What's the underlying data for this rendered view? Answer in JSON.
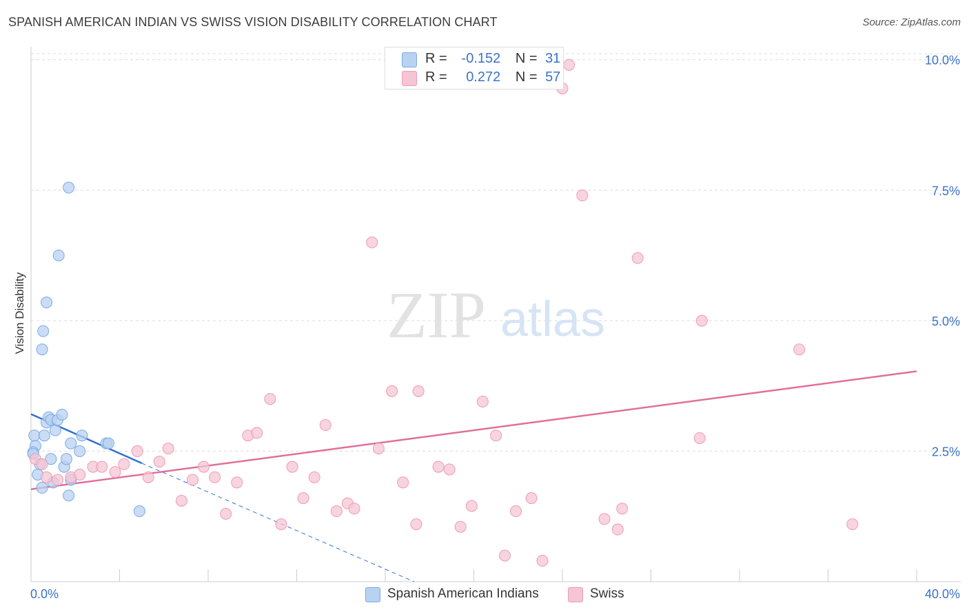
{
  "title": "SPANISH AMERICAN INDIAN VS SWISS VISION DISABILITY CORRELATION CHART",
  "source": "Source: ZipAtlas.com",
  "watermark": {
    "zip": "ZIP",
    "atlas": "atlas"
  },
  "legend": {
    "series1": {
      "r_label": "R =",
      "r_value": "-0.152",
      "n_label": "N =",
      "n_value": "31"
    },
    "series2": {
      "r_label": "R =",
      "r_value": "0.272",
      "n_label": "N =",
      "n_value": "57"
    }
  },
  "chart_data": {
    "type": "scatter",
    "title": "SPANISH AMERICAN INDIAN VS SWISS VISION DISABILITY CORRELATION CHART",
    "xlabel": "",
    "ylabel": "Vision Disability",
    "xlim": [
      0,
      40
    ],
    "ylim": [
      0,
      10.3
    ],
    "x_tick_labels": [
      "0.0%",
      "40.0%"
    ],
    "y_ticks": [
      2.5,
      5.0,
      7.5,
      10.0
    ],
    "y_tick_labels": [
      "2.5%",
      "5.0%",
      "7.5%",
      "10.0%"
    ],
    "series": [
      {
        "name": "Spanish American Indians",
        "color": "#7aa9e6",
        "fill": "#b8d2f2",
        "line_color": "#2e6fd6",
        "trend": {
          "x": [
            0.0,
            5.0
          ],
          "y": [
            3.21,
            2.27
          ],
          "dashed_extension": {
            "x": [
              5.0,
              17.3
            ],
            "y": [
              2.27,
              0.0
            ]
          }
        },
        "points": [
          [
            0.15,
            2.8
          ],
          [
            0.2,
            2.6
          ],
          [
            0.1,
            2.48
          ],
          [
            0.1,
            2.45
          ],
          [
            0.3,
            2.05
          ],
          [
            0.4,
            2.25
          ],
          [
            0.5,
            1.8
          ],
          [
            0.6,
            2.8
          ],
          [
            0.7,
            3.05
          ],
          [
            0.8,
            3.15
          ],
          [
            0.9,
            3.1
          ],
          [
            0.9,
            2.35
          ],
          [
            1.0,
            1.9
          ],
          [
            1.1,
            2.9
          ],
          [
            1.2,
            3.1
          ],
          [
            1.4,
            3.2
          ],
          [
            1.5,
            2.2
          ],
          [
            1.6,
            2.35
          ],
          [
            1.7,
            1.65
          ],
          [
            1.8,
            1.95
          ],
          [
            1.8,
            2.65
          ],
          [
            2.2,
            2.5
          ],
          [
            2.3,
            2.8
          ],
          [
            3.4,
            2.65
          ],
          [
            3.5,
            2.65
          ],
          [
            4.9,
            1.35
          ],
          [
            0.5,
            4.45
          ],
          [
            0.55,
            4.8
          ],
          [
            0.7,
            5.35
          ],
          [
            1.25,
            6.25
          ],
          [
            1.7,
            7.55
          ]
        ]
      },
      {
        "name": "Swiss",
        "color": "#ee9ab3",
        "fill": "#f6c5d4",
        "line_color": "#e06f98",
        "trend": {
          "x": [
            0.0,
            40.0
          ],
          "y": [
            1.77,
            4.03
          ]
        },
        "points": [
          [
            0.2,
            2.35
          ],
          [
            0.5,
            2.25
          ],
          [
            0.7,
            2.0
          ],
          [
            1.2,
            1.95
          ],
          [
            1.8,
            2.0
          ],
          [
            2.2,
            2.05
          ],
          [
            2.8,
            2.2
          ],
          [
            3.2,
            2.2
          ],
          [
            3.8,
            2.1
          ],
          [
            4.2,
            2.25
          ],
          [
            4.8,
            2.5
          ],
          [
            5.3,
            2.0
          ],
          [
            5.8,
            2.3
          ],
          [
            6.2,
            2.55
          ],
          [
            6.8,
            1.55
          ],
          [
            7.3,
            1.95
          ],
          [
            7.8,
            2.2
          ],
          [
            8.3,
            2.0
          ],
          [
            8.8,
            1.3
          ],
          [
            9.3,
            1.9
          ],
          [
            9.8,
            2.8
          ],
          [
            10.2,
            2.85
          ],
          [
            10.8,
            3.5
          ],
          [
            11.3,
            1.1
          ],
          [
            11.8,
            2.2
          ],
          [
            12.3,
            1.6
          ],
          [
            12.8,
            2.0
          ],
          [
            13.3,
            3.0
          ],
          [
            13.8,
            1.35
          ],
          [
            14.3,
            1.5
          ],
          [
            14.6,
            1.4
          ],
          [
            15.7,
            2.55
          ],
          [
            15.4,
            6.5
          ],
          [
            16.3,
            3.65
          ],
          [
            16.8,
            1.9
          ],
          [
            17.4,
            1.1
          ],
          [
            17.5,
            3.65
          ],
          [
            18.4,
            2.2
          ],
          [
            18.9,
            2.15
          ],
          [
            19.4,
            1.05
          ],
          [
            19.9,
            1.45
          ],
          [
            20.4,
            3.45
          ],
          [
            21.0,
            2.8
          ],
          [
            21.4,
            0.5
          ],
          [
            21.9,
            1.35
          ],
          [
            22.6,
            1.6
          ],
          [
            23.1,
            0.4
          ],
          [
            24.0,
            9.45
          ],
          [
            24.3,
            9.9
          ],
          [
            24.9,
            7.4
          ],
          [
            25.9,
            1.2
          ],
          [
            26.5,
            1.0
          ],
          [
            26.7,
            1.4
          ],
          [
            27.4,
            6.2
          ],
          [
            30.3,
            5.0
          ],
          [
            30.2,
            2.75
          ],
          [
            34.7,
            4.45
          ],
          [
            37.1,
            1.1
          ]
        ]
      }
    ]
  },
  "bottom_legend": {
    "series1_label": "Spanish American Indians",
    "series2_label": "Swiss"
  },
  "colors": {
    "axis_label_blue": "#3a72c8",
    "grid": "#dddddd"
  }
}
